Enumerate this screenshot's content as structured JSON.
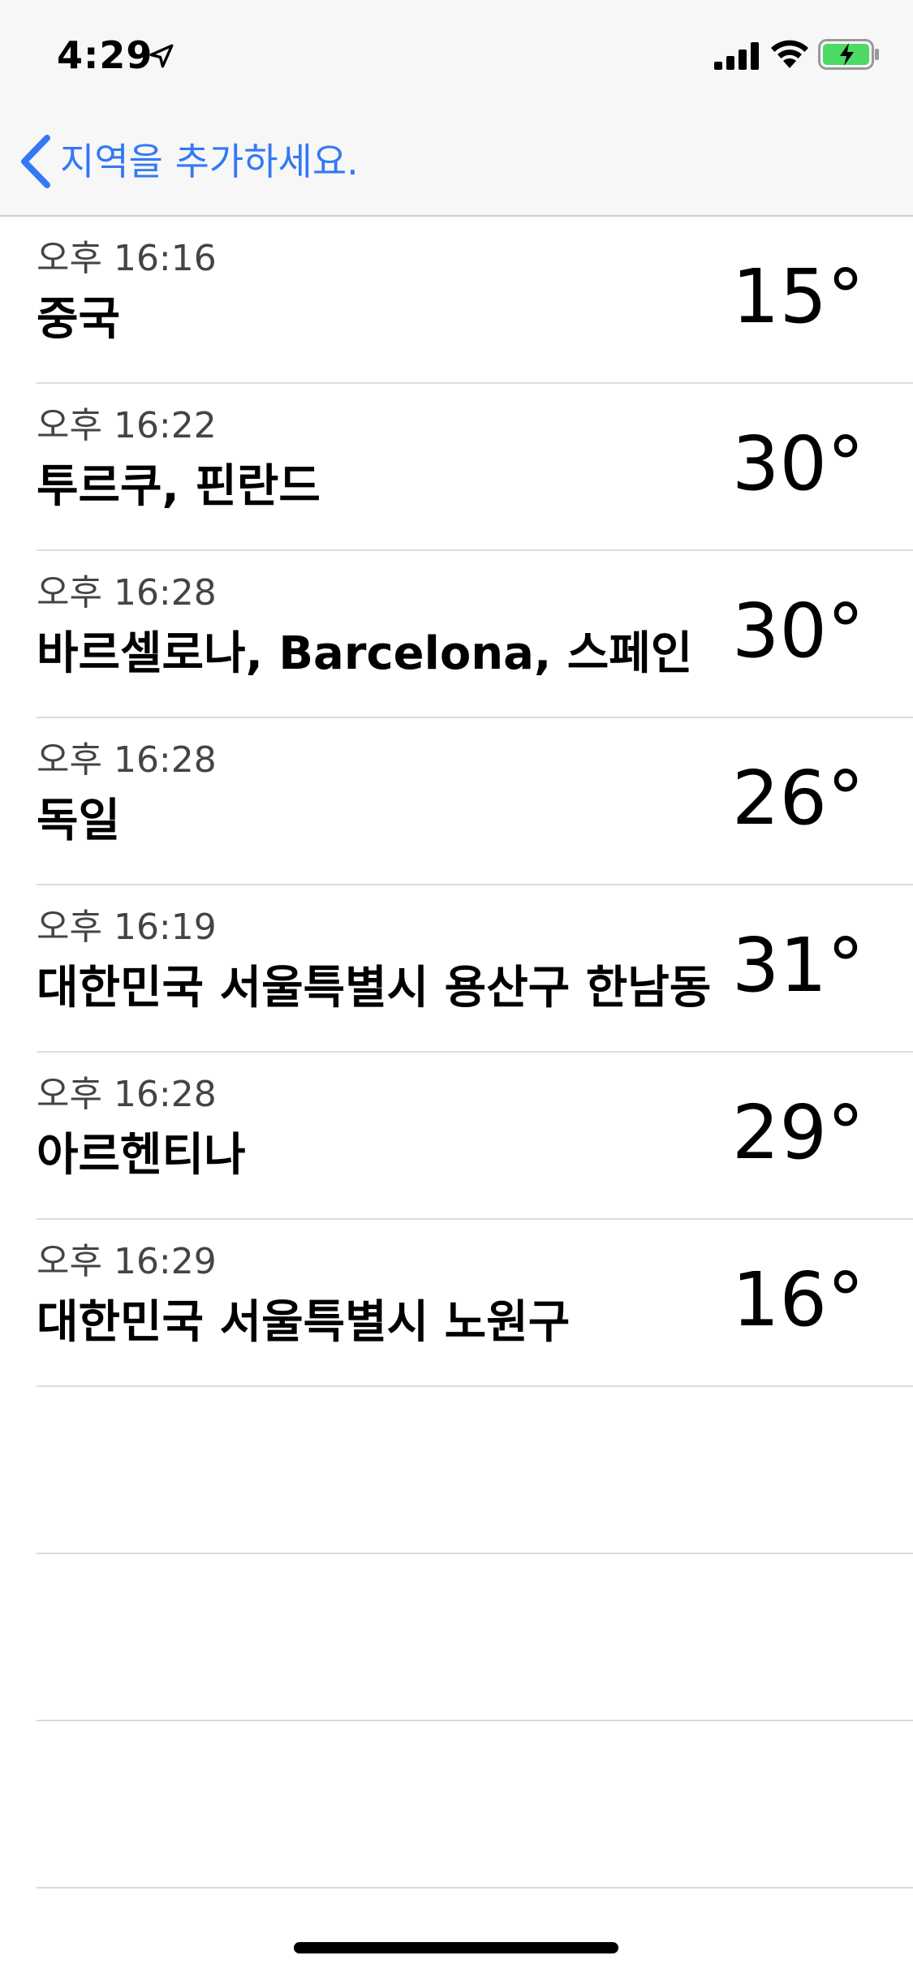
{
  "status_bar": {
    "time": "4:29",
    "icons": [
      "location-arrow-icon",
      "cellular-signal-icon",
      "wifi-icon",
      "battery-charging-icon"
    ]
  },
  "nav": {
    "back_label": "지역을 추가하세요.",
    "accent_color": "#3478f6"
  },
  "cities": [
    {
      "time": "오후 16:16",
      "name": "중국",
      "temp": "15°"
    },
    {
      "time": "오후 16:22",
      "name": "투르쿠, 핀란드",
      "temp": "30°"
    },
    {
      "time": "오후 16:28",
      "name": "바르셀로나, Barcelona, 스페인",
      "temp": "30°"
    },
    {
      "time": "오후 16:28",
      "name": "독일",
      "temp": "26°"
    },
    {
      "time": "오후 16:19",
      "name": "대한민국 서울특별시 용산구 한남동",
      "temp": "31°"
    },
    {
      "time": "오후 16:28",
      "name": "아르헨티나",
      "temp": "29°"
    },
    {
      "time": "오후 16:29",
      "name": "대한민국 서울특별시 노원구",
      "temp": "16°"
    }
  ]
}
